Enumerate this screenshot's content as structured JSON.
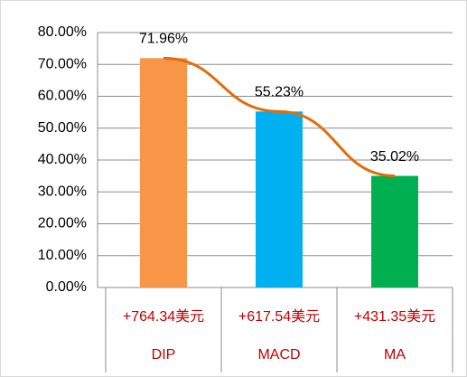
{
  "chart_data": {
    "type": "bar",
    "categories": [
      "DIP",
      "MACD",
      "MA"
    ],
    "category_notes": [
      "+764.34美元",
      "+617.54美元",
      "+431.35美元"
    ],
    "values": [
      71.96,
      55.23,
      35.02
    ],
    "value_labels": [
      "71.96%",
      "55.23%",
      "35.02%"
    ],
    "colors": [
      "#f79646",
      "#00b0f0",
      "#00b050"
    ],
    "trendline": true,
    "trendline_color": "#e36c09",
    "label_color": "#c00000",
    "ylim": [
      0,
      80
    ],
    "yticks": [
      {
        "value": 0,
        "label": "0.00%"
      },
      {
        "value": 10,
        "label": "10.00%"
      },
      {
        "value": 20,
        "label": "20.00%"
      },
      {
        "value": 30,
        "label": "30.00%"
      },
      {
        "value": 40,
        "label": "40.00%"
      },
      {
        "value": 50,
        "label": "50.00%"
      },
      {
        "value": 60,
        "label": "60.00%"
      },
      {
        "value": 70,
        "label": "70.00%"
      },
      {
        "value": 80,
        "label": "80.00%"
      }
    ],
    "grid": true
  }
}
